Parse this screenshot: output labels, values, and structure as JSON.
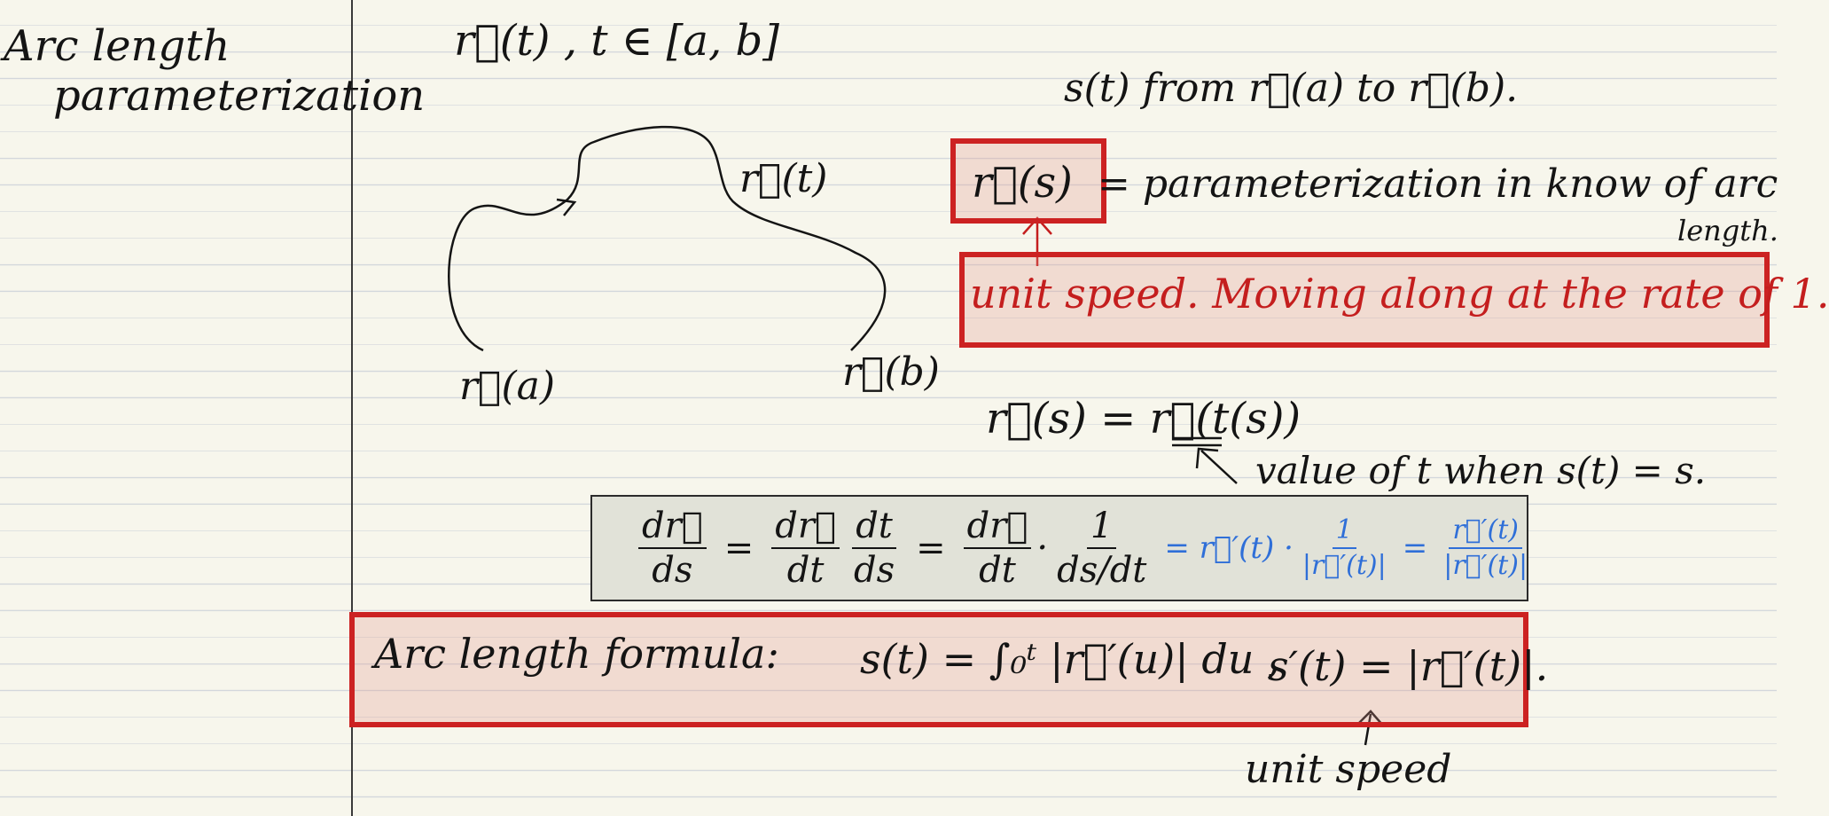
{
  "notebook": {
    "margin_title_line1": "Arc length",
    "margin_title_line2": "parameterization"
  },
  "header": {
    "curve_def": "r⃗(t) ,  t ∈ [a, b]",
    "s_def": "s(t)  from  r⃗(a)  to  r⃗(b)."
  },
  "sketch": {
    "label_rt": "r⃗(t)",
    "label_ra": "r⃗(a)",
    "label_rb": "r⃗(b)"
  },
  "definition": {
    "rs_box": "r⃗(s)",
    "rest": "= parameterization in know of arc",
    "rest_wrap": "length."
  },
  "unit_speed_box": {
    "text": "unit speed.  Moving  along  at  the  rate  of  1."
  },
  "composition": {
    "lhs": "r⃗(s) = r⃗(t(s))",
    "note": "value  of  t  when  s(t) = s."
  },
  "derivative_box": {
    "lhs_num": "dr⃗",
    "lhs_den": "ds",
    "f1_num": "dr⃗",
    "f1_den": "dt",
    "f2_num": "dt",
    "f2_den": "ds",
    "f3_num": "dr⃗",
    "f3_den": "dt",
    "f4_num": "1",
    "f4_den": "ds/dt",
    "blue_r": "= r⃗′(t) ·",
    "f5_num": "1",
    "f5_den": "|r⃗′(t)|",
    "f6_num": "r⃗′(t)",
    "f6_den": "|r⃗′(t)|"
  },
  "arc_formula_box": {
    "label": "Arc  length  formula:",
    "formula": "s(t) = ∫₀ᵗ |r⃗′(u)| du ,",
    "derivative": "s′(t) = |r⃗′(t)|."
  },
  "unit_speed_note": {
    "text": "unit  speed"
  },
  "colors": {
    "ink": "#141414",
    "red_ink": "#c41e1e",
    "blue_ink": "#2f6fd8",
    "box_red": "#cc2222",
    "paper": "#f7f6ec"
  }
}
